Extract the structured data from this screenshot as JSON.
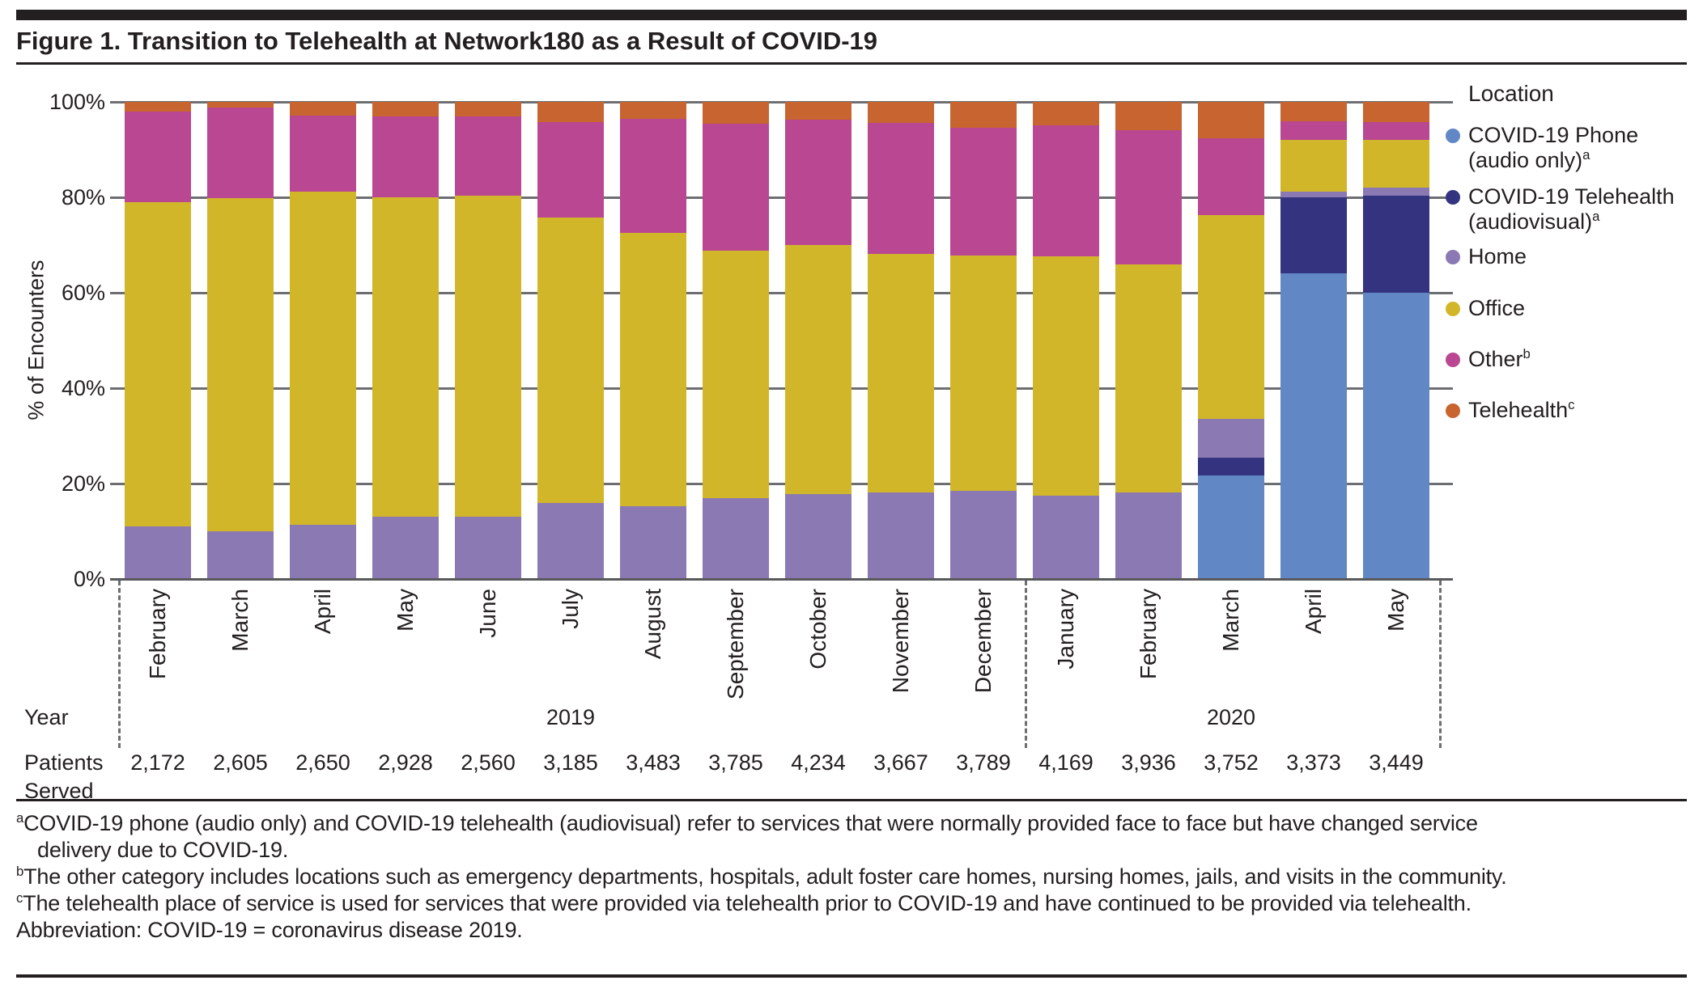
{
  "figure": {
    "title": "Figure 1. Transition to Telehealth at Network180 as a Result of COVID-19"
  },
  "y_axis": {
    "label": "% of Encounters",
    "ticks": [
      "0%",
      "20%",
      "40%",
      "60%",
      "80%",
      "100%"
    ]
  },
  "legend": {
    "title": "Location",
    "items": [
      {
        "id": "covid-phone",
        "color": "#6287c5",
        "lines": [
          {
            "text": "COVID-19 Phone",
            "sup": ""
          },
          {
            "text": "(audio only)",
            "sup": "a"
          }
        ]
      },
      {
        "id": "covid-telehealth",
        "color": "#333380",
        "lines": [
          {
            "text": "COVID-19 Telehealth",
            "sup": ""
          },
          {
            "text": "(audiovisual)",
            "sup": "a"
          }
        ]
      },
      {
        "id": "home",
        "color": "#8b79b3",
        "lines": [
          {
            "text": "Home",
            "sup": ""
          }
        ]
      },
      {
        "id": "office",
        "color": "#d2b62a",
        "lines": [
          {
            "text": "Office",
            "sup": ""
          }
        ]
      },
      {
        "id": "other",
        "color": "#ba4792",
        "lines": [
          {
            "text": "Other",
            "sup": "b"
          }
        ]
      },
      {
        "id": "telehealth",
        "color": "#c8642f",
        "lines": [
          {
            "text": "Telehealth",
            "sup": "c"
          }
        ]
      }
    ]
  },
  "chart_data": {
    "type": "bar",
    "stacked": true,
    "unit": "percent of encounters",
    "title": "Figure 1. Transition to Telehealth at Network180 as a Result of COVID-19",
    "ylabel": "% of Encounters",
    "ylim": [
      0,
      100
    ],
    "grid": true,
    "legend_position": "right",
    "categories": [
      "February",
      "March",
      "April",
      "May",
      "June",
      "July",
      "August",
      "September",
      "October",
      "November",
      "December",
      "January",
      "February",
      "March",
      "April",
      "May"
    ],
    "year_groups": [
      {
        "label": "2019",
        "start": 0,
        "end": 10
      },
      {
        "label": "2020",
        "start": 11,
        "end": 15
      }
    ],
    "series": [
      {
        "name": "COVID-19 Phone (audio only)",
        "color": "#6287c5",
        "values": [
          0,
          0,
          0,
          0,
          0,
          0,
          0,
          0,
          0,
          0,
          0,
          0,
          0,
          21.7,
          64,
          60
        ]
      },
      {
        "name": "COVID-19 Telehealth (audiovisual)",
        "color": "#333380",
        "values": [
          0,
          0,
          0,
          0,
          0,
          0,
          0,
          0,
          0,
          0,
          0,
          0,
          0,
          3.7,
          16,
          20.3
        ]
      },
      {
        "name": "Home",
        "color": "#8b79b3",
        "values": [
          11,
          10,
          11.3,
          13,
          13,
          16,
          15.3,
          17,
          17.8,
          18.1,
          18.4,
          17.4,
          18.1,
          8.2,
          1.2,
          1.7
        ]
      },
      {
        "name": "Office",
        "color": "#d2b62a",
        "values": [
          68,
          69.8,
          69.9,
          67,
          67.4,
          59.7,
          57.2,
          51.9,
          52.2,
          50,
          49.4,
          50.3,
          47.9,
          42.7,
          10.9,
          10
        ]
      },
      {
        "name": "Other",
        "color": "#ba4792",
        "values": [
          19,
          19,
          15.9,
          16.9,
          16.5,
          20.1,
          24,
          26.5,
          26.3,
          27.5,
          26.7,
          27.4,
          28.1,
          16,
          3.8,
          3.7
        ]
      },
      {
        "name": "Telehealth",
        "color": "#c8642f",
        "values": [
          2,
          1.2,
          2.9,
          3.1,
          3.1,
          4.2,
          3.5,
          4.6,
          3.7,
          4.4,
          5.5,
          4.9,
          5.9,
          7.7,
          4.1,
          4.3
        ]
      }
    ],
    "patients_served": [
      "2,172",
      "2,605",
      "2,650",
      "2,928",
      "2,560",
      "3,185",
      "3,483",
      "3,785",
      "4,234",
      "3,667",
      "3,789",
      "4,169",
      "3,936",
      "3,752",
      "3,373",
      "3,449"
    ]
  },
  "bottom": {
    "year_label": "Year",
    "patients_label_line1": "Patients",
    "patients_label_line2": "Served"
  },
  "footnotes": [
    {
      "sup": "a",
      "indent": false,
      "text": "COVID-19 phone (audio only) and COVID-19 telehealth (audiovisual) refer to services that were normally provided face to face but have changed service"
    },
    {
      "sup": "",
      "indent": true,
      "text": "delivery due to COVID-19."
    },
    {
      "sup": "b",
      "indent": false,
      "text": "The other category includes locations such as emergency departments, hospitals, adult foster care homes, nursing homes, jails, and visits in the community."
    },
    {
      "sup": "c",
      "indent": false,
      "text": "The telehealth place of service is used for services that were provided via telehealth prior to COVID-19 and have continued to be provided via telehealth."
    },
    {
      "sup": "",
      "indent": false,
      "text": "Abbreviation: COVID-19 = coronavirus disease 2019."
    }
  ]
}
